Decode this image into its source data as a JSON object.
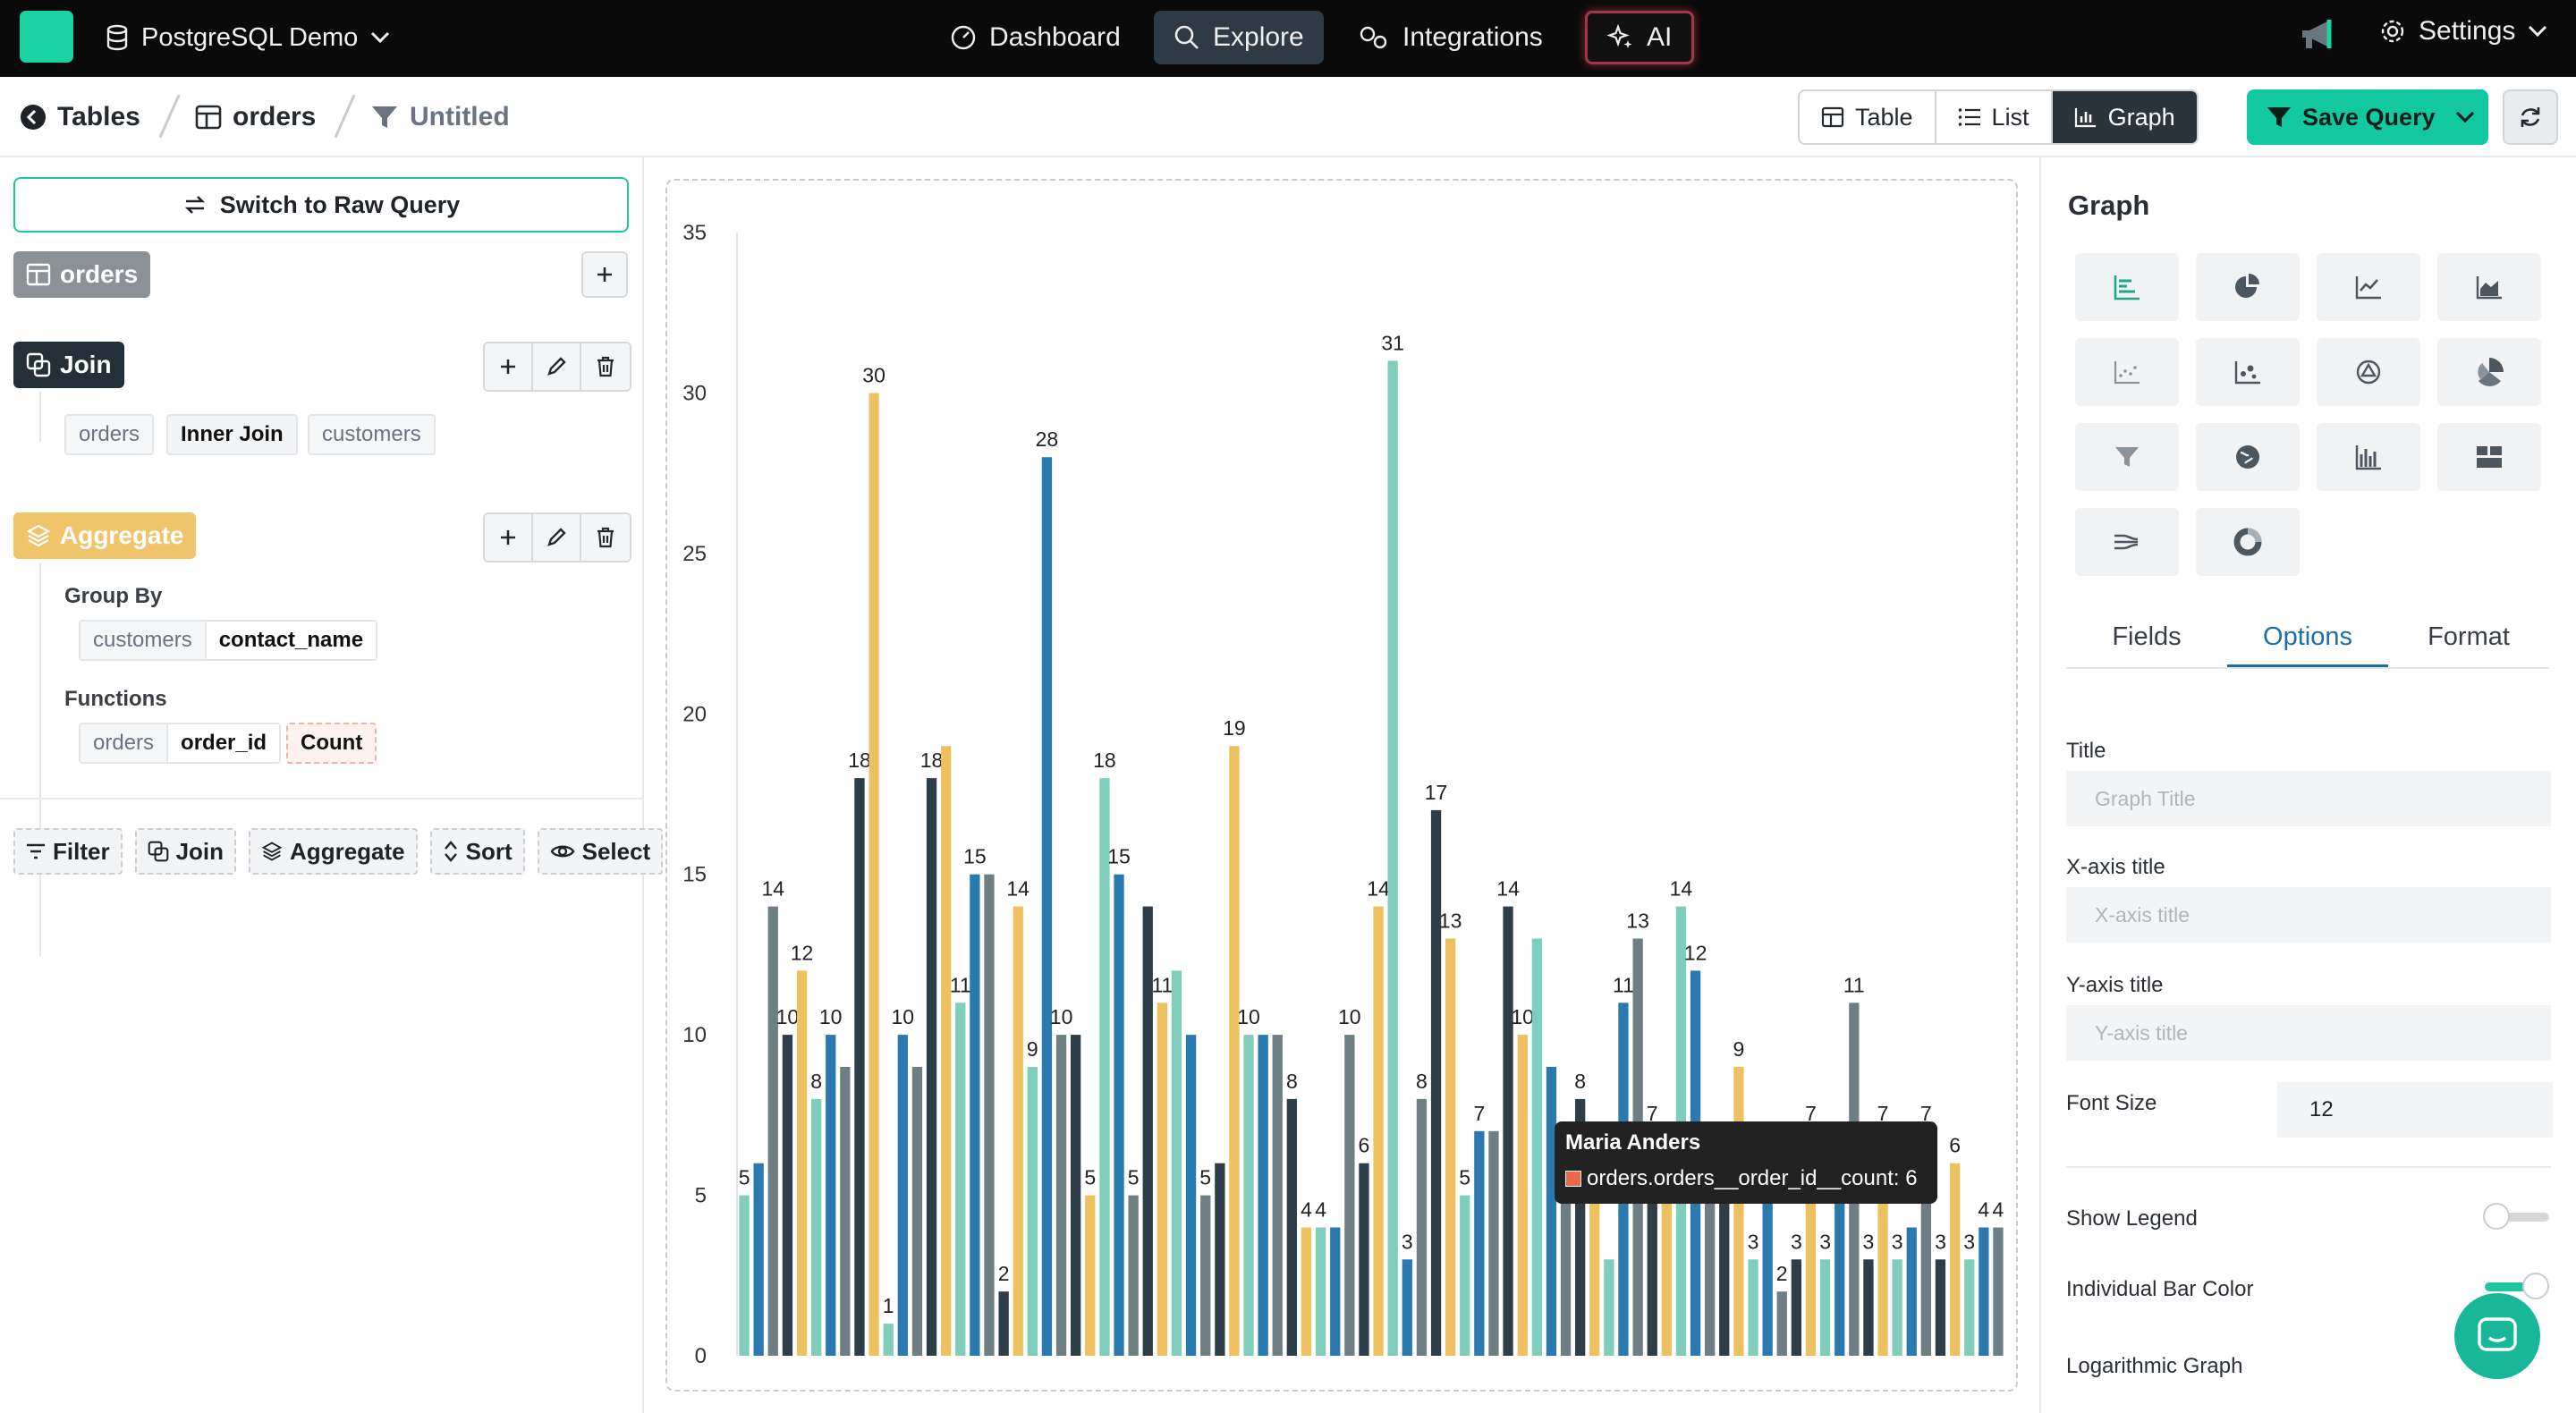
{
  "topbar": {
    "database": "PostgreSQL Demo",
    "nav": [
      "Dashboard",
      "Explore",
      "Integrations",
      "AI"
    ],
    "settings": "Settings"
  },
  "breadcrumb": {
    "tables": "Tables",
    "orders": "orders",
    "query": "Untitled"
  },
  "views": [
    "Table",
    "List",
    "Graph"
  ],
  "save": "Save Query",
  "left": {
    "raw_query": "Switch to Raw Query",
    "base_table": "orders",
    "join_label": "Join",
    "join": {
      "left": "orders",
      "type": "Inner Join",
      "right": "customers"
    },
    "aggregate_label": "Aggregate",
    "group_by_label": "Group By",
    "group_by": {
      "table": "customers",
      "column": "contact_name"
    },
    "functions_label": "Functions",
    "functions": {
      "table": "orders",
      "column": "order_id",
      "fn": "Count"
    },
    "tools": [
      "Filter",
      "Join",
      "Aggregate",
      "Sort",
      "Select"
    ]
  },
  "right": {
    "title": "Graph",
    "tabs": [
      "Fields",
      "Options",
      "Format"
    ],
    "title_label": "Title",
    "title_placeholder": "Graph Title",
    "xaxis_label": "X-axis title",
    "xaxis_placeholder": "X-axis title",
    "yaxis_label": "Y-axis title",
    "yaxis_placeholder": "Y-axis title",
    "font_size_label": "Font Size",
    "font_size": "12",
    "show_legend": "Show Legend",
    "individual_bar_color": "Individual Bar Color",
    "log_graph": "Logarithmic Graph"
  },
  "tooltip": {
    "name": "Maria Anders",
    "series": "orders.orders__order_id__count: 6"
  },
  "colors": {
    "accent": "#12c8a0",
    "palette": [
      "#7fcdbb",
      "#2d3e48",
      "#f0a060",
      "#2a7ab0",
      "#edc060",
      "#9b2040",
      "#6e7f84",
      "#e9694a"
    ]
  },
  "chart_data": {
    "type": "bar",
    "ylim": [
      0,
      35
    ],
    "yticks": [
      0,
      5,
      10,
      15,
      20,
      25,
      30,
      35
    ],
    "values": [
      5,
      6,
      14,
      10,
      12,
      8,
      10,
      9,
      18,
      30,
      1,
      10,
      9,
      18,
      19,
      11,
      15,
      15,
      2,
      14,
      9,
      28,
      10,
      10,
      5,
      18,
      15,
      5,
      14,
      11,
      12,
      10,
      5,
      6,
      19,
      10,
      10,
      10,
      8,
      4,
      4,
      4,
      10,
      6,
      14,
      31,
      3,
      8,
      17,
      13,
      5,
      7,
      7,
      14,
      10,
      13,
      9,
      6,
      8,
      6,
      3,
      11,
      13,
      7,
      5,
      14,
      12,
      5,
      6,
      9,
      3,
      5,
      2,
      3,
      7,
      3,
      6,
      11,
      3,
      7,
      3,
      4,
      7,
      3,
      6,
      3,
      4,
      4
    ],
    "labels_shown": [
      true,
      false,
      true,
      true,
      true,
      true,
      true,
      false,
      true,
      true,
      true,
      true,
      false,
      true,
      false,
      true,
      true,
      false,
      true,
      true,
      true,
      true,
      true,
      false,
      true,
      true,
      true,
      true,
      false,
      true,
      false,
      false,
      true,
      false,
      true,
      true,
      false,
      false,
      true,
      true,
      true,
      false,
      true,
      true,
      true,
      true,
      true,
      true,
      true,
      true,
      true,
      true,
      false,
      true,
      true,
      false,
      false,
      true,
      true,
      true,
      false,
      true,
      true,
      true,
      true,
      true,
      true,
      true,
      true,
      true,
      true,
      true,
      true,
      true,
      true,
      true,
      true,
      true,
      true,
      true,
      true,
      false,
      true,
      true,
      true,
      true,
      true,
      true
    ]
  }
}
